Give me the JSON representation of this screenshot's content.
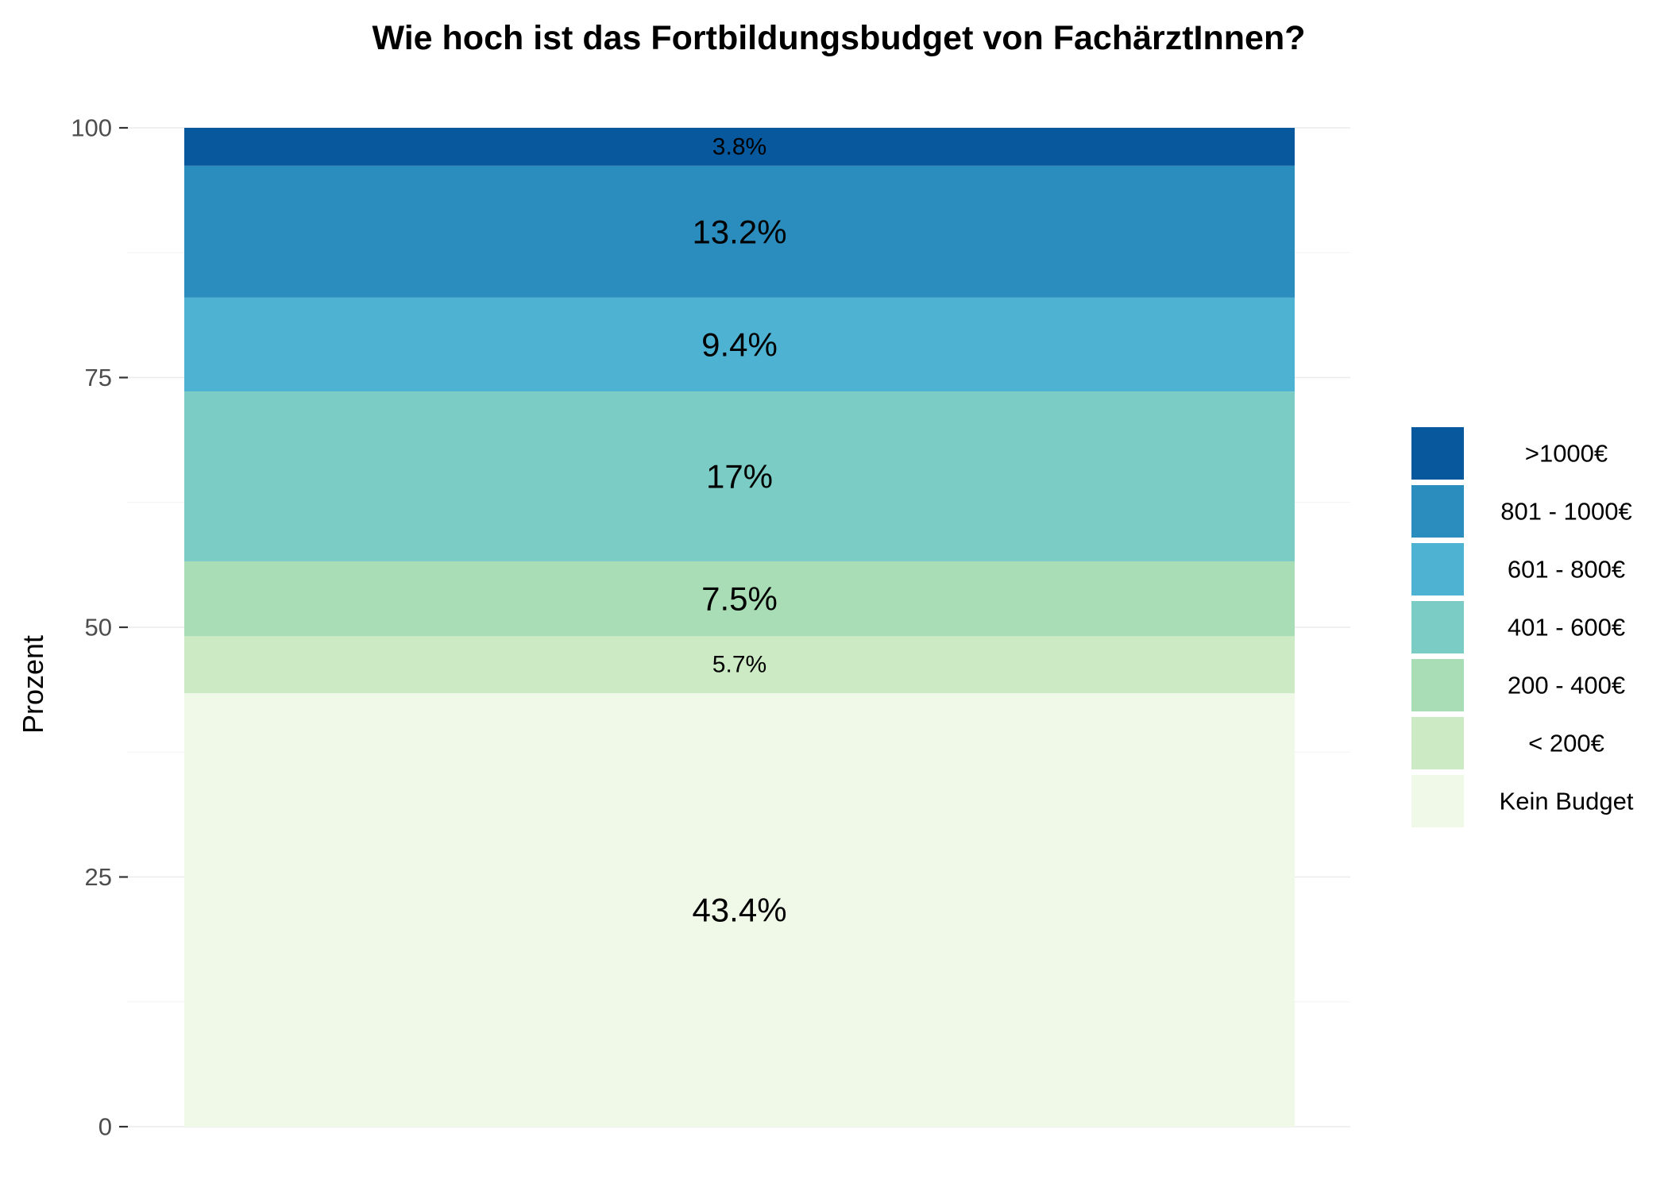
{
  "chart_data": {
    "type": "bar",
    "stacked": true,
    "orientation": "vertical",
    "title": "Wie hoch ist das Fortbildungsbudget von FachärztInnen?",
    "xlabel": "",
    "ylabel": "Prozent",
    "ylim": [
      0,
      100
    ],
    "yticks": [
      0,
      25,
      50,
      75,
      100
    ],
    "ytick_labels": [
      "0",
      "25",
      "50",
      "75",
      "100"
    ],
    "grid": true,
    "legend_position": "right",
    "categories": [
      ""
    ],
    "series": [
      {
        "name": "Kein Budget",
        "values": [
          43.4
        ],
        "label": "43.4%",
        "color": "#f0f9e8"
      },
      {
        "name": "< 200€",
        "values": [
          5.7
        ],
        "label": "5.7%",
        "color": "#ccebc5"
      },
      {
        "name": "200 - 400€",
        "values": [
          7.5
        ],
        "label": "7.5%",
        "color": "#a8ddb5"
      },
      {
        "name": "401 - 600€",
        "values": [
          17
        ],
        "label": "17%",
        "color": "#7bccc4"
      },
      {
        "name": "601 - 800€",
        "values": [
          9.4
        ],
        "label": "9.4%",
        "color": "#4eb3d3"
      },
      {
        "name": "801 - 1000€",
        "values": [
          13.2
        ],
        "label": "13.2%",
        "color": "#2b8cbe"
      },
      {
        "name": ">1000€",
        "values": [
          3.8
        ],
        "label": "3.8%",
        "color": "#08589e"
      }
    ]
  }
}
